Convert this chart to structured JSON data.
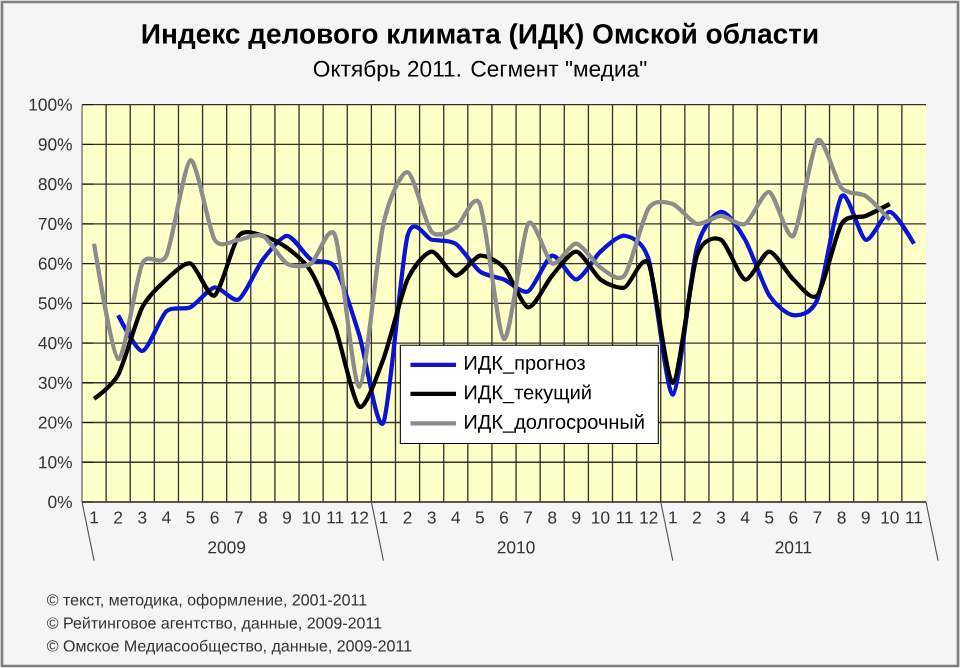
{
  "chart_data": {
    "type": "line",
    "title": "Индекс делового климата (ИДК) Омской области",
    "subtitle": "Октябрь 2011. Сегмент \"медиа\"",
    "categories": [
      "1",
      "2",
      "3",
      "4",
      "5",
      "6",
      "7",
      "8",
      "9",
      "10",
      "11",
      "12",
      "1",
      "2",
      "3",
      "4",
      "5",
      "6",
      "7",
      "8",
      "9",
      "10",
      "11",
      "12",
      "1",
      "2",
      "3",
      "4",
      "5",
      "6",
      "7",
      "8",
      "9",
      "10",
      "11"
    ],
    "series": [
      {
        "name": "ИДК_прогноз",
        "color": "#0a14d2",
        "values": [
          null,
          47,
          38,
          48,
          49,
          54,
          51,
          61,
          67,
          61,
          59,
          42,
          20,
          67,
          66,
          65,
          58,
          56,
          53,
          62,
          56,
          63,
          67,
          61,
          27,
          64,
          73,
          66,
          52,
          47,
          51,
          77,
          66,
          73,
          65
        ]
      },
      {
        "name": "ИДК_текущий",
        "color": "#000000",
        "values": [
          26,
          32,
          49,
          56,
          60,
          52,
          67,
          67,
          64,
          58,
          44,
          24,
          36,
          56,
          63,
          57,
          62,
          59,
          49,
          57,
          63,
          56,
          54,
          60,
          30,
          62,
          66,
          56,
          63,
          56,
          52,
          70,
          72,
          75,
          null
        ]
      },
      {
        "name": "ИДК_долгосрочный",
        "color": "#8c8c8c",
        "values": [
          65,
          36,
          60,
          62,
          86,
          66,
          66,
          67,
          60,
          60,
          67,
          29,
          70,
          83,
          68,
          69,
          75,
          41,
          70,
          60,
          65,
          59,
          57,
          74,
          75,
          70,
          72,
          70,
          78,
          67,
          91,
          79,
          77,
          71,
          null
        ]
      }
    ],
    "ylim": [
      0,
      100
    ],
    "yticks": [
      {
        "value": 0,
        "label": "0%"
      },
      {
        "value": 10,
        "label": "10%"
      },
      {
        "value": 20,
        "label": "20%"
      },
      {
        "value": 30,
        "label": "30%"
      },
      {
        "value": 40,
        "label": "40%"
      },
      {
        "value": 50,
        "label": "50%"
      },
      {
        "value": 60,
        "label": "60%"
      },
      {
        "value": 70,
        "label": "70%"
      },
      {
        "value": 80,
        "label": "80%"
      },
      {
        "value": 90,
        "label": "90%"
      },
      {
        "value": 100,
        "label": "100%"
      }
    ],
    "grid": true,
    "legend": "bottom",
    "marker": "none",
    "line_style": "solid",
    "annotations": [
      "2009",
      "2010",
      "2011",
      "© текст, методика, оформление, 2001-2011",
      "© Рейтинговое агентство, данные, 2009-2011",
      "© Омское Медиасообщество, данные, 2009-2011"
    ]
  }
}
